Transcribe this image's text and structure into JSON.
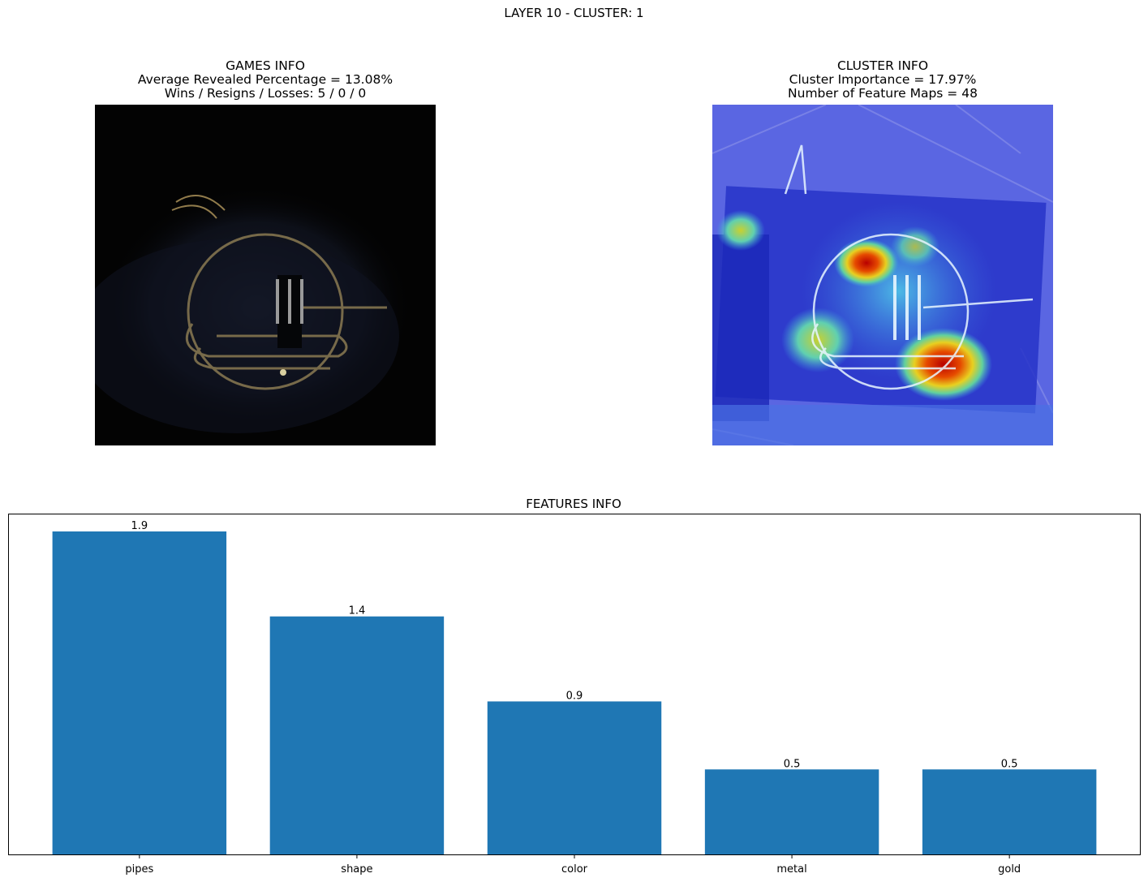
{
  "suptitle": "LAYER 10 - CLUSTER: 1",
  "games_info": {
    "title": "GAMES INFO",
    "line1": "Average Revealed Percentage = 13.08%",
    "line2": "Wins / Resigns / Losses: 5 / 0 / 0"
  },
  "cluster_info": {
    "title": "CLUSTER INFO",
    "line1": "Cluster Importance = 17.97%",
    "line2": "Number of Feature Maps = 48"
  },
  "colors": {
    "bar": "#1f77b4",
    "masked_background": "#030303",
    "heatmap_low": "#2a3bd8",
    "heatmap_high": "#c81010"
  },
  "chart_data": {
    "type": "bar",
    "title": "FEATURES INFO",
    "categories": [
      "pipes",
      "shape",
      "color",
      "metal",
      "gold"
    ],
    "values": [
      1.9,
      1.4,
      0.9,
      0.5,
      0.5
    ],
    "value_labels": [
      "1.9",
      "1.4",
      "0.9",
      "0.5",
      "0.5"
    ],
    "ylim": [
      0,
      2.0
    ],
    "xlabel": "",
    "ylabel": "",
    "yticks_visible": false,
    "grid": false
  }
}
